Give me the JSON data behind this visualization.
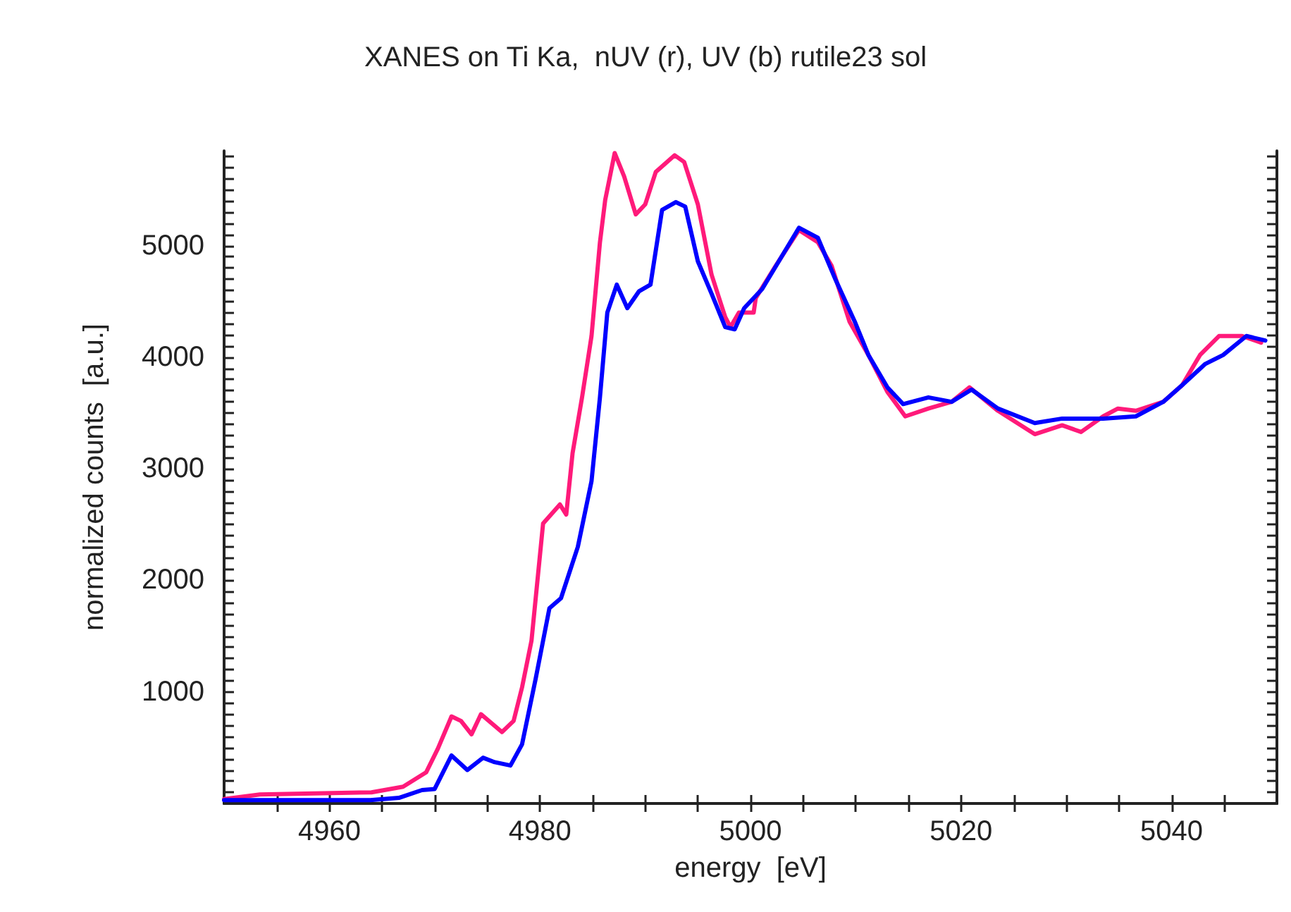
{
  "chart_data": {
    "type": "line",
    "title": "XANES on Ti Ka,  nUV (r), UV (b) rutile23 sol",
    "xlabel": "energy  [eV]",
    "ylabel": "normalized counts  [a.u.]",
    "xlim": [
      4950,
      5050
    ],
    "ylim": [
      0,
      5850
    ],
    "xticks": [
      {
        "value": 4955,
        "label": null
      },
      4960,
      {
        "value": 4965,
        "label": null
      },
      {
        "value": 4970,
        "label": null
      },
      {
        "value": 4975,
        "label": null
      },
      4980,
      {
        "value": 4985,
        "label": null
      },
      {
        "value": 4990,
        "label": null
      },
      {
        "value": 4995,
        "label": null
      },
      5000,
      {
        "value": 5005,
        "label": null
      },
      {
        "value": 5010,
        "label": null
      },
      {
        "value": 5015,
        "label": null
      },
      5020,
      {
        "value": 5025,
        "label": null
      },
      {
        "value": 5030,
        "label": null
      },
      {
        "value": 5035,
        "label": null
      },
      5040,
      {
        "value": 5045,
        "label": null
      }
    ],
    "yticks": [
      {
        "value": 100,
        "label": null
      },
      {
        "value": 200,
        "label": null
      },
      {
        "value": 300,
        "label": null
      },
      {
        "value": 400,
        "label": null
      },
      {
        "value": 500,
        "label": null
      },
      {
        "value": 600,
        "label": null
      },
      {
        "value": 700,
        "label": null
      },
      {
        "value": 800,
        "label": null
      },
      {
        "value": 900,
        "label": null
      },
      1000,
      {
        "value": 1100,
        "label": null
      },
      {
        "value": 1200,
        "label": null
      },
      {
        "value": 1300,
        "label": null
      },
      {
        "value": 1400,
        "label": null
      },
      {
        "value": 1500,
        "label": null
      },
      {
        "value": 1600,
        "label": null
      },
      {
        "value": 1700,
        "label": null
      },
      {
        "value": 1800,
        "label": null
      },
      {
        "value": 1900,
        "label": null
      },
      2000,
      {
        "value": 2100,
        "label": null
      },
      {
        "value": 2200,
        "label": null
      },
      {
        "value": 2300,
        "label": null
      },
      {
        "value": 2400,
        "label": null
      },
      {
        "value": 2500,
        "label": null
      },
      {
        "value": 2600,
        "label": null
      },
      {
        "value": 2700,
        "label": null
      },
      {
        "value": 2800,
        "label": null
      },
      {
        "value": 2900,
        "label": null
      },
      3000,
      {
        "value": 3100,
        "label": null
      },
      {
        "value": 3200,
        "label": null
      },
      {
        "value": 3300,
        "label": null
      },
      {
        "value": 3400,
        "label": null
      },
      {
        "value": 3500,
        "label": null
      },
      {
        "value": 3600,
        "label": null
      },
      {
        "value": 3700,
        "label": null
      },
      {
        "value": 3800,
        "label": null
      },
      {
        "value": 3900,
        "label": null
      },
      4000,
      {
        "value": 4100,
        "label": null
      },
      {
        "value": 4200,
        "label": null
      },
      {
        "value": 4300,
        "label": null
      },
      {
        "value": 4400,
        "label": null
      },
      {
        "value": 4500,
        "label": null
      },
      {
        "value": 4600,
        "label": null
      },
      {
        "value": 4700,
        "label": null
      },
      {
        "value": 4800,
        "label": null
      },
      {
        "value": 4900,
        "label": null
      },
      5000,
      {
        "value": 5100,
        "label": null
      },
      {
        "value": 5200,
        "label": null
      },
      {
        "value": 5300,
        "label": null
      },
      {
        "value": 5400,
        "label": null
      },
      {
        "value": 5500,
        "label": null
      },
      {
        "value": 5600,
        "label": null
      },
      {
        "value": 5700,
        "label": null
      },
      {
        "value": 5800,
        "label": null
      }
    ],
    "grid": false,
    "marker": "none",
    "line_style": "solid",
    "series": [
      {
        "color": "#ff1a7a",
        "x": [
          4950,
          4953.4,
          4964,
          4967,
          4969.2,
          4970.3,
          4971.6,
          4972.5,
          4973.5,
          4974.4,
          4976.4,
          4977.5,
          4978.3,
          4979.2,
          4980.3,
          4981.9,
          4982.5,
          4983.1,
          4984,
          4984.9,
          4985.7,
          4986.2,
          4987.1,
          4988,
          4989.1,
          4990,
          4991,
          4992.8,
          4993.7,
          4995,
          4996.3,
          4997.6,
          4998.1,
          4998.9,
          5000.3,
          5000.5,
          5002.4,
          5004.6,
          5006.4,
          5007.7,
          5009.4,
          5011.2,
          5013,
          5014.7,
          5016.9,
          5019.1,
          5020.8,
          5023.5,
          5027,
          5029.6,
          5031.4,
          5033.5,
          5034.9,
          5036.6,
          5039.2,
          5041,
          5042.7,
          5044.5,
          5046.7,
          5048.5
        ],
        "values": [
          40,
          80,
          100,
          150,
          280,
          490,
          780,
          740,
          620,
          800,
          640,
          740,
          1040,
          1460,
          2510,
          2680,
          2590,
          3140,
          3640,
          4190,
          5030,
          5410,
          5830,
          5620,
          5280,
          5370,
          5660,
          5810,
          5750,
          5370,
          4740,
          4360,
          4270,
          4400,
          4400,
          4530,
          4820,
          5140,
          5030,
          4820,
          4320,
          4020,
          3690,
          3470,
          3540,
          3600,
          3730,
          3520,
          3310,
          3390,
          3330,
          3470,
          3540,
          3520,
          3600,
          3750,
          4020,
          4190,
          4190,
          4130
        ]
      },
      {
        "color": "#0000ff",
        "x": [
          4950,
          4963.9,
          4966.6,
          4968.8,
          4970,
          4971.6,
          4973.1,
          4974.6,
          4975.7,
          4977.2,
          4978.3,
          4979.6,
          4980.9,
          4982,
          4983.6,
          4984.9,
          4985.7,
          4986.4,
          4987.3,
          4988.3,
          4989.4,
          4990.5,
          4991.6,
          4992.9,
          4993.8,
          4995,
          4996.3,
          4997.6,
          4998.5,
          4999.4,
          5001.1,
          5004.6,
          5006.4,
          5008.1,
          5009.9,
          5011.2,
          5013,
          5014.5,
          5016.9,
          5019.1,
          5021,
          5023.5,
          5027,
          5029.6,
          5033.5,
          5036.6,
          5039.2,
          5041,
          5043.2,
          5044.9,
          5047.1,
          5048.9
        ],
        "values": [
          30,
          30,
          50,
          120,
          130,
          430,
          300,
          410,
          370,
          340,
          530,
          1120,
          1750,
          1840,
          2300,
          2890,
          3640,
          4400,
          4650,
          4440,
          4590,
          4650,
          5320,
          5390,
          5350,
          4860,
          4570,
          4270,
          4250,
          4440,
          4610,
          5160,
          5070,
          4690,
          4320,
          4020,
          3730,
          3580,
          3640,
          3600,
          3710,
          3540,
          3410,
          3450,
          3450,
          3470,
          3600,
          3750,
          3940,
          4020,
          4190,
          4150
        ]
      }
    ]
  }
}
